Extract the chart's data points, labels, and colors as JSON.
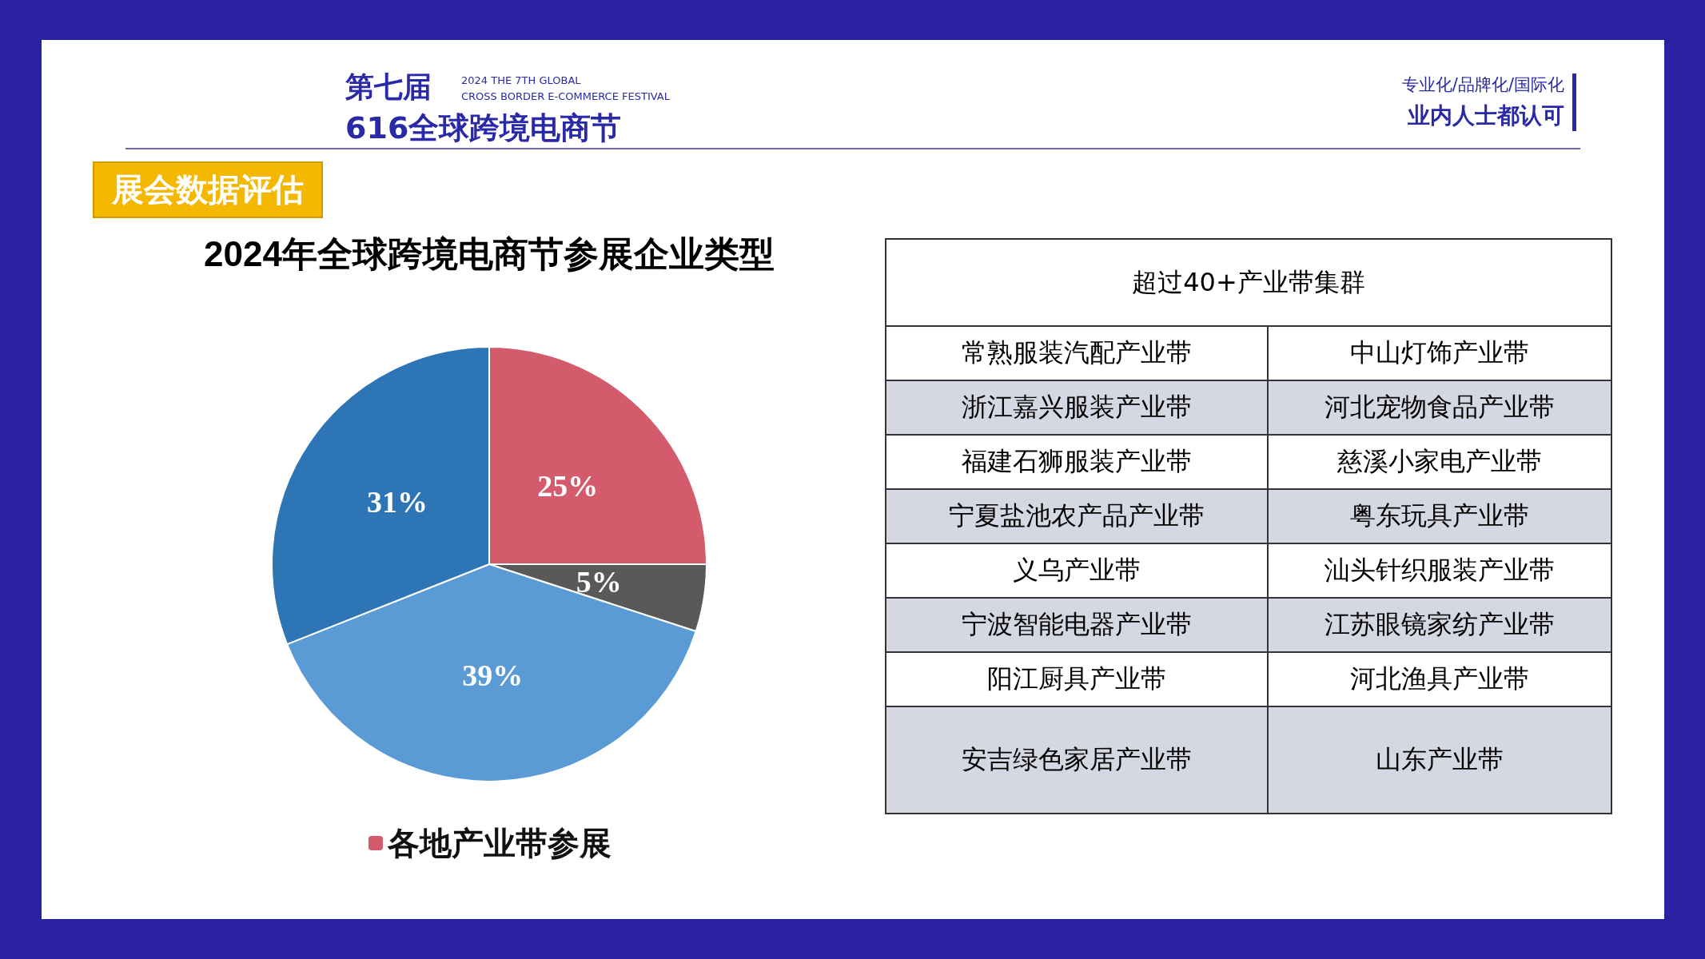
{
  "chart_data": [
    {
      "type": "pie",
      "title": "2024年全球跨境电商节参展企业类型",
      "subtitle": "展会数据评估",
      "annotations": [
        "第七届",
        "616全球跨境电商节",
        "2024 THE 7TH GLOBAL",
        "CROSS BORDER E-COMMERCE FESTIVAL",
        "专业化/品牌化/国际化",
        "业内人士都认可"
      ],
      "categories": [
        "各地产业带参展",
        null,
        null,
        null
      ],
      "values": [
        25,
        5,
        39,
        31
      ],
      "value_labels": [
        "25%",
        "5%",
        "39%",
        "31%"
      ],
      "colors": [
        "#d45b6b",
        "#595959",
        "#5b9bd5",
        "#2e75b6"
      ],
      "legend": "bottom"
    },
    {
      "type": "other",
      "title": "超过40+产业带集群",
      "annotations": [
        "常熟服装汽配产业带",
        "中山灯饰产业带",
        "浙江嘉兴服装产业带",
        "河北宠物食品产业带",
        "福建石狮服装产业带",
        "慈溪小家电产业带",
        "宁夏盐池农产品产业带",
        "粤东玩具产业带",
        "义乌产业带",
        "汕头针织服装产业带",
        "宁波智能电器产业带",
        "江苏眼镜家纺产业带",
        "阳江厨具产业带",
        "河北渔具产业带",
        "安吉绿色家居产业带",
        "山东产业带"
      ]
    }
  ]
}
